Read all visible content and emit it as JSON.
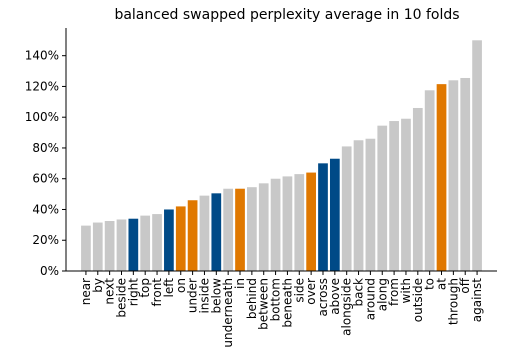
{
  "chart_data": {
    "type": "bar",
    "title": "balanced swapped perplexity average in 10 folds",
    "xlabel": "",
    "ylabel": "",
    "ylim": [
      0,
      158
    ],
    "yticks": [
      0,
      20,
      40,
      60,
      80,
      100,
      120,
      140
    ],
    "ytick_labels": [
      "0%",
      "20%",
      "40%",
      "60%",
      "80%",
      "100%",
      "120%",
      "140%"
    ],
    "grid": false,
    "legend": "none",
    "colors": {
      "gray": "#c8c8c8",
      "blue": "#004a87",
      "orange": "#e07800"
    },
    "categories": [
      "near",
      "by",
      "next",
      "beside",
      "right",
      "top",
      "front",
      "left",
      "on",
      "under",
      "inside",
      "below",
      "underneath",
      "in",
      "behind",
      "between",
      "bottom",
      "beneath",
      "side",
      "over",
      "across",
      "above",
      "alongside",
      "back",
      "around",
      "along",
      "from",
      "with",
      "outside",
      "to",
      "at",
      "through",
      "off",
      "against"
    ],
    "values": [
      29.5,
      31.5,
      32.5,
      33.5,
      34.0,
      36.0,
      37.0,
      40.0,
      42.0,
      46.0,
      49.0,
      50.5,
      53.5,
      53.5,
      54.5,
      57.0,
      60.0,
      61.5,
      63.0,
      64.0,
      70.0,
      73.0,
      81.0,
      85.0,
      86.0,
      94.5,
      97.5,
      99.0,
      106.0,
      117.5,
      121.5,
      124.0,
      125.5,
      150.0
    ],
    "bar_colors": [
      "gray",
      "gray",
      "gray",
      "gray",
      "blue",
      "gray",
      "gray",
      "blue",
      "orange",
      "orange",
      "gray",
      "blue",
      "gray",
      "orange",
      "gray",
      "gray",
      "gray",
      "gray",
      "gray",
      "orange",
      "blue",
      "blue",
      "gray",
      "gray",
      "gray",
      "gray",
      "gray",
      "gray",
      "gray",
      "gray",
      "orange",
      "gray",
      "gray",
      "gray"
    ]
  }
}
